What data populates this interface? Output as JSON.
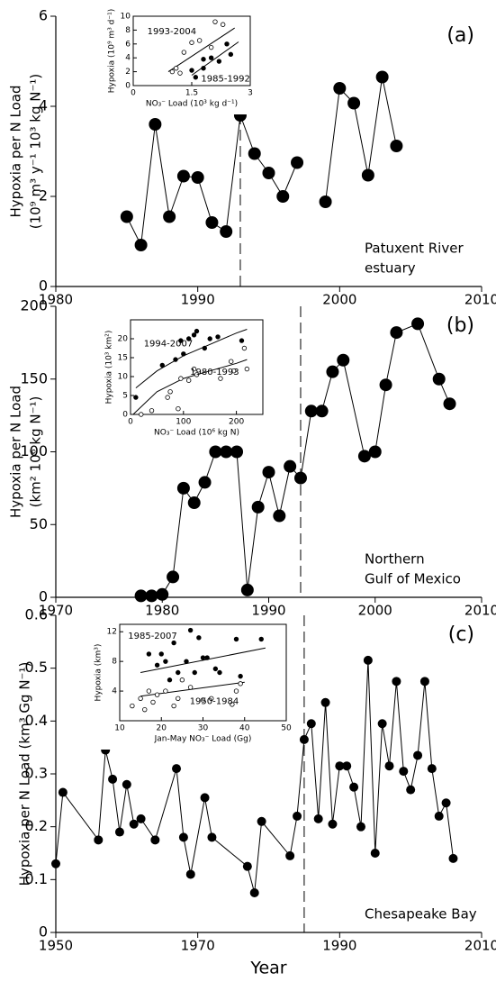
{
  "chart_data": [
    {
      "type": "line",
      "label": "(a)",
      "color": "#000000",
      "ylabel": [
        "Hypoxia per N Load",
        "(10⁹ m³ y⁻¹ 10³ kg N⁻¹)"
      ],
      "annotation": [
        "Patuxent River",
        "estuary"
      ],
      "x": [
        1985,
        1986,
        1987,
        1988,
        1989,
        1990,
        1991,
        1992,
        1993,
        1994,
        1995,
        1996,
        1997,
        1998,
        1999,
        2000,
        2001,
        2002,
        2003,
        2004
      ],
      "values": [
        1.55,
        0.92,
        3.6,
        1.55,
        2.45,
        2.42,
        1.42,
        1.22,
        3.8,
        2.95,
        2.52,
        2.0,
        2.75,
        null,
        1.88,
        4.4,
        4.07,
        2.47,
        4.65,
        3.12
      ],
      "xlim": [
        1980,
        2010
      ],
      "xticks": [
        1980,
        1990,
        2000,
        2010
      ],
      "ylim": [
        0,
        6
      ],
      "yticks": [
        0,
        2,
        4,
        6
      ],
      "vline": 1993,
      "inset": {
        "type": "scatter",
        "xlabel": "NO₃⁻ Load (10³ kg d⁻¹)",
        "ylabel": "Hypoxia (10⁹ m³ d⁻¹)",
        "xlim": [
          0,
          3
        ],
        "xticks": [
          0,
          1.5,
          3
        ],
        "ylim": [
          0,
          10
        ],
        "yticks": [
          0,
          2,
          4,
          6,
          8,
          10
        ],
        "series": [
          {
            "name": "1993-2004",
            "filled": false,
            "x": [
              1.0,
              1.1,
              1.2,
              1.3,
              1.5,
              1.7,
              2.0,
              2.1,
              2.3
            ],
            "values": [
              2.0,
              2.5,
              1.8,
              4.8,
              6.2,
              6.5,
              5.5,
              9.2,
              8.8
            ],
            "fit": {
              "x": [
                0.9,
                2.6
              ],
              "values": [
                2.0,
                8.3
              ]
            }
          },
          {
            "name": "1985-1992",
            "filled": true,
            "x": [
              1.5,
              1.6,
              1.8,
              1.8,
              2.0,
              2.2,
              2.4,
              2.5
            ],
            "values": [
              2.2,
              1.2,
              3.8,
              2.5,
              4.0,
              3.5,
              6.0,
              4.5
            ],
            "fit": {
              "x": [
                1.5,
                2.7
              ],
              "values": [
                1.5,
                6.3
              ]
            }
          }
        ]
      }
    },
    {
      "type": "line",
      "label": "(b)",
      "color": "#000000",
      "ylabel": [
        "Hypoxia per N Load",
        "(km² 10⁶ kg N⁻¹)"
      ],
      "annotation": [
        "Northern",
        "Gulf of Mexico"
      ],
      "x": [
        1978,
        1979,
        1980,
        1981,
        1982,
        1983,
        1984,
        1985,
        1986,
        1987,
        1988,
        1989,
        1990,
        1991,
        1992,
        1993,
        1994,
        1995,
        1996,
        1997,
        1999,
        2000,
        2001,
        2002,
        2004,
        2006,
        2007
      ],
      "values": [
        1,
        1,
        2,
        14,
        75,
        65,
        79,
        100,
        100,
        100,
        5,
        62,
        86,
        56,
        90,
        82,
        128,
        128,
        155,
        163,
        97,
        100,
        146,
        182,
        188,
        150,
        133
      ],
      "xlim": [
        1970,
        2010
      ],
      "xticks": [
        1970,
        1980,
        1990,
        2000,
        2010
      ],
      "ylim": [
        0,
        200
      ],
      "yticks": [
        0,
        50,
        100,
        150,
        200
      ],
      "vline": 1993,
      "inset": {
        "type": "scatter",
        "xlabel": "NO₃⁻ Load (10⁶ kg N)",
        "ylabel": "Hypoxia (10³ km²)",
        "xlim": [
          0,
          250
        ],
        "xticks": [
          0,
          100,
          200
        ],
        "ylim": [
          0,
          25
        ],
        "yticks": [
          0,
          5,
          10,
          15,
          20
        ],
        "series": [
          {
            "name": "1994-2007",
            "filled": true,
            "x": [
              10,
              60,
              85,
              95,
              100,
              110,
              120,
              125,
              140,
              150,
              165,
              210
            ],
            "values": [
              4.5,
              13,
              14.5,
              19.5,
              16,
              20,
              21,
              22,
              17.5,
              20,
              20.5,
              19.5
            ],
            "fit": {
              "x": [
                10,
                50,
                100,
                150,
                200,
                220
              ],
              "values": [
                7,
                11.5,
                15.5,
                18.5,
                21.5,
                22.5
              ]
            }
          },
          {
            "name": "1980-1993",
            "filled": false,
            "x": [
              20,
              40,
              70,
              75,
              90,
              95,
              110,
              120,
              125,
              170,
              190,
              195,
              215,
              220
            ],
            "values": [
              0,
              1,
              4.5,
              6,
              1.5,
              9.5,
              9,
              12,
              10.5,
              9.5,
              14,
              11.5,
              17.5,
              12
            ],
            "fit": {
              "x": [
                5,
                50,
                100,
                150,
                200,
                220
              ],
              "values": [
                0,
                6,
                9.5,
                11.5,
                13.5,
                14.5
              ]
            }
          }
        ]
      }
    },
    {
      "type": "line",
      "label": "(c)",
      "color": "#000000",
      "xlabel": "Year",
      "ylabel": [
        "Hypoxia per N Load (km³ Gg N⁻¹)"
      ],
      "annotation": [
        "Chesapeake Bay"
      ],
      "x": [
        1950,
        1951,
        1956,
        1957,
        1958,
        1959,
        1960,
        1961,
        1962,
        1964,
        1967,
        1968,
        1969,
        1971,
        1972,
        1977,
        1978,
        1979,
        1983,
        1984,
        1985,
        1986,
        1987,
        1988,
        1989,
        1990,
        1991,
        1992,
        1993,
        1994,
        1995,
        1996,
        1997,
        1998,
        1999,
        2000,
        2001,
        2002,
        2003,
        2004,
        2005,
        2006
      ],
      "values": [
        0.13,
        0.265,
        0.175,
        0.345,
        0.29,
        0.19,
        0.28,
        0.205,
        0.215,
        0.175,
        0.31,
        0.18,
        0.11,
        0.255,
        0.18,
        0.125,
        0.075,
        0.21,
        0.145,
        0.22,
        0.365,
        0.395,
        0.215,
        0.435,
        0.205,
        0.315,
        0.315,
        0.275,
        0.2,
        0.515,
        0.15,
        0.395,
        0.315,
        0.475,
        0.305,
        0.27,
        0.335,
        0.475,
        0.31,
        0.22,
        0.245,
        0.14
      ],
      "xlim": [
        1950,
        2010
      ],
      "xticks": [
        1950,
        1970,
        1990,
        2010
      ],
      "ylim": [
        0,
        0.6
      ],
      "yticks": [
        0,
        0.1,
        0.2,
        0.3,
        0.4,
        0.5,
        0.6
      ],
      "vline": 1985,
      "inset": {
        "type": "scatter",
        "xlabel": "Jan-May NO₃⁻ Load (Gg)",
        "ylabel": "Hypoxia (km³)",
        "xlim": [
          10,
          50
        ],
        "xticks": [
          10,
          20,
          30,
          40,
          50
        ],
        "ylim": [
          0,
          13
        ],
        "yticks": [
          4,
          8,
          12
        ],
        "series": [
          {
            "name": "1985-2007",
            "filled": true,
            "x": [
              17,
              19,
              20,
              21,
              22,
              23,
              24,
              26,
              27,
              28,
              29,
              30,
              31,
              33,
              34,
              38,
              39,
              44
            ],
            "values": [
              9,
              7.5,
              9,
              8,
              5.5,
              10.5,
              6.5,
              8,
              12.2,
              6.5,
              11.2,
              8.5,
              8.5,
              7,
              6.5,
              11,
              6,
              11
            ],
            "fit": {
              "x": [
                15,
                45
              ],
              "values": [
                6.5,
                9.8
              ]
            }
          },
          {
            "name": "1950-1984",
            "filled": false,
            "x": [
              13,
              15,
              16,
              17,
              18,
              19,
              21,
              23,
              24,
              25,
              27,
              30,
              32,
              37,
              38,
              39
            ],
            "values": [
              2,
              3,
              1.5,
              4,
              2.5,
              3.5,
              4,
              2,
              3,
              5.5,
              4.5,
              2.8,
              3,
              2.2,
              4,
              5
            ],
            "fit": {
              "x": [
                15,
                40
              ],
              "values": [
                3.3,
                5.2
              ]
            }
          }
        ]
      }
    }
  ]
}
